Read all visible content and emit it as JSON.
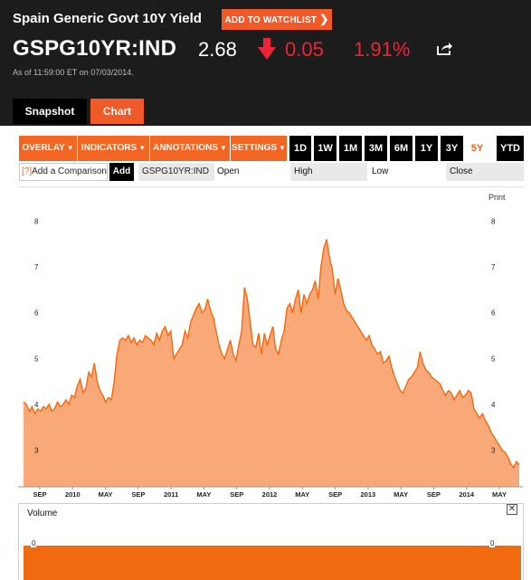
{
  "header": {
    "quote_name": "Spain Generic Govt 10Y Yield",
    "watchlist_label": "ADD TO WATCHLIST",
    "ticker": "GSPG10YR:IND",
    "price": "2.68",
    "change": "0.05",
    "change_pct": "1.91%",
    "as_of_prefix": "As of 11:59:00 ET on ",
    "as_of_date": "07/03/2014.",
    "colors": {
      "background": "#1c1c1c",
      "negative": "#ec2435",
      "accent": "#f05a28"
    },
    "icons": {
      "direction": "arrow-down-icon",
      "share": "share-icon"
    }
  },
  "tabs": [
    {
      "label": "Snapshot",
      "active": false
    },
    {
      "label": "Chart",
      "active": true
    }
  ],
  "toolbar": {
    "menus": [
      {
        "label": "OVERLAY"
      },
      {
        "label": "INDICATORS"
      },
      {
        "label": "ANNOTATIONS"
      },
      {
        "label": "SETTINGS"
      }
    ],
    "ranges": [
      {
        "label": "1D"
      },
      {
        "label": "1W"
      },
      {
        "label": "1M"
      },
      {
        "label": "3M"
      },
      {
        "label": "6M"
      },
      {
        "label": "1Y"
      },
      {
        "label": "3Y"
      },
      {
        "label": "5Y",
        "active": true
      },
      {
        "label": "YTD"
      }
    ]
  },
  "compare": {
    "help": "[?]",
    "placeholder": "Add a Comparison",
    "add_label": "Add",
    "symbol": "GSPG10YR:IND",
    "columns": [
      "Open",
      "High",
      "Low",
      "Close"
    ]
  },
  "print_label": "Print",
  "chart_data": {
    "type": "area",
    "title": "",
    "xlabel": "",
    "ylabel": "",
    "ylim": [
      2.2,
      8.6
    ],
    "y_ticks": [
      "3",
      "4",
      "5",
      "6",
      "7",
      "8"
    ],
    "x_ticks": [
      "SEP",
      "2010",
      "MAY",
      "SEP",
      "2011",
      "MAY",
      "SEP",
      "2012",
      "MAY",
      "SEP",
      "2013",
      "MAY",
      "SEP",
      "2014",
      "MAY"
    ],
    "grid": false,
    "fill_color": "#f9a877",
    "line_color": "#f26a0f",
    "series": [
      {
        "values": [
          4.05,
          4.0,
          3.85,
          3.95,
          3.8,
          3.9,
          3.85,
          3.95,
          3.9,
          4.0,
          3.85,
          3.9,
          4.05,
          3.95,
          4.0,
          4.1,
          4.0,
          4.2,
          4.15,
          4.4,
          4.55,
          4.25,
          4.35,
          4.7,
          4.6,
          4.9,
          4.5,
          4.3,
          4.2,
          4.05,
          4.15,
          4.1,
          4.5,
          5.1,
          5.4,
          5.45,
          5.4,
          5.5,
          5.35,
          5.45,
          5.3,
          5.4,
          5.35,
          5.5,
          5.45,
          5.4,
          5.3,
          5.55,
          5.4,
          5.6,
          5.7,
          5.5,
          5.6,
          5.0,
          5.1,
          5.2,
          5.3,
          5.6,
          5.45,
          5.8,
          5.95,
          6.1,
          6.2,
          6.0,
          6.05,
          6.3,
          6.05,
          5.9,
          5.6,
          5.3,
          5.1,
          5.0,
          5.2,
          5.4,
          5.1,
          4.95,
          5.3,
          5.6,
          6.55,
          6.3,
          5.8,
          5.3,
          5.25,
          5.55,
          5.1,
          5.55,
          5.3,
          5.5,
          5.7,
          5.2,
          5.1,
          5.4,
          5.6,
          6.1,
          6.2,
          6.0,
          6.3,
          6.5,
          6.0,
          6.4,
          6.2,
          6.4,
          6.5,
          6.7,
          6.3,
          7.0,
          7.4,
          7.6,
          7.2,
          6.95,
          6.4,
          6.75,
          6.5,
          6.2,
          6.05,
          6.0,
          5.9,
          5.8,
          5.7,
          5.6,
          5.5,
          5.4,
          5.5,
          5.3,
          5.2,
          5.1,
          5.15,
          4.9,
          4.95,
          5.05,
          4.8,
          4.6,
          4.45,
          4.3,
          4.25,
          4.4,
          4.55,
          4.6,
          4.7,
          4.8,
          5.15,
          4.9,
          4.75,
          4.7,
          4.6,
          4.55,
          4.5,
          4.45,
          4.3,
          4.2,
          4.3,
          4.25,
          4.1,
          4.2,
          4.3,
          4.15,
          4.2,
          4.3,
          4.25,
          3.9,
          3.8,
          3.7,
          3.8,
          3.65,
          3.55,
          3.4,
          3.3,
          3.2,
          3.1,
          3.0,
          2.95,
          2.85,
          2.7,
          2.62,
          2.75,
          2.68
        ]
      }
    ]
  },
  "volume": {
    "label": "Volume",
    "axis_min": "0",
    "close_icon": "close-icon"
  }
}
